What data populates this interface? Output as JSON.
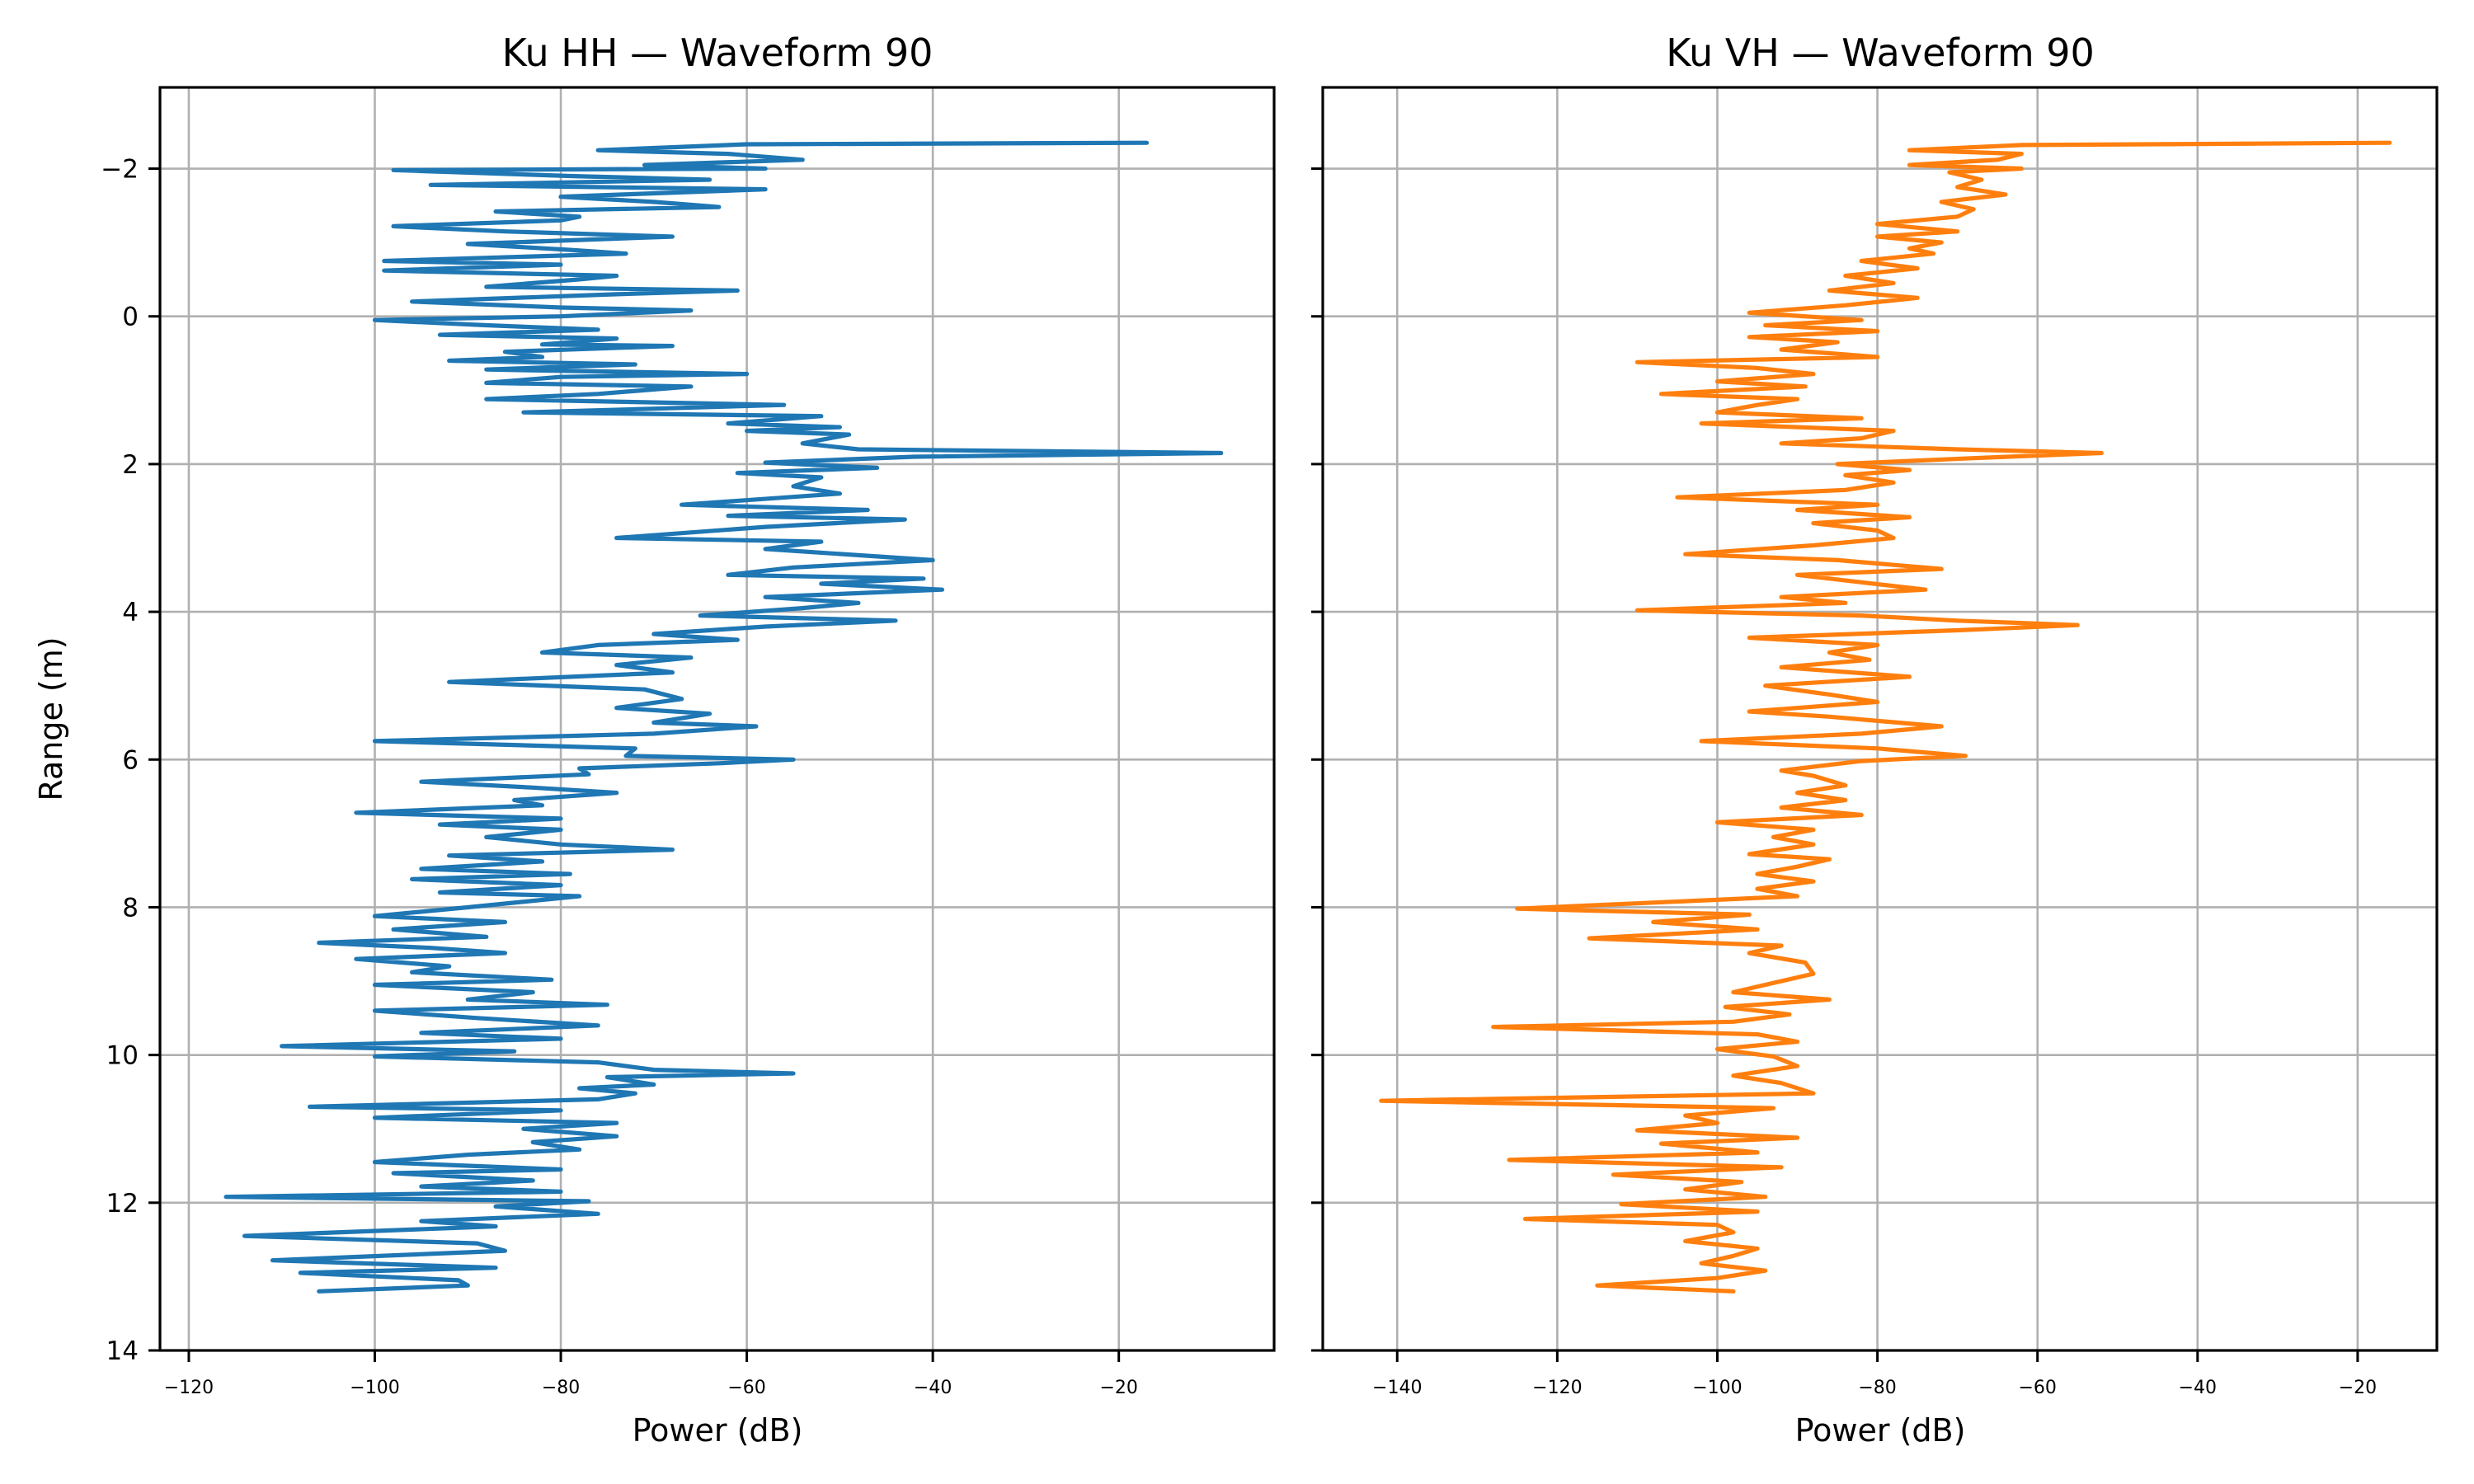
{
  "chart_data": [
    {
      "type": "line",
      "title": "Ku HH — Waveform 90",
      "xlabel": "Power (dB)",
      "ylabel": "Range (m)",
      "xlim": [
        -123.1,
        -3.3
      ],
      "ylim": [
        14,
        -3.1
      ],
      "y_inverted": true,
      "grid": true,
      "xticks": [
        -120,
        -100,
        -80,
        -60,
        -40,
        -20
      ],
      "xtick_labels": [
        "−120",
        "−100",
        "−80",
        "−60",
        "−40",
        "−20"
      ],
      "yticks": [
        -2,
        0,
        2,
        4,
        6,
        8,
        10,
        12,
        14
      ],
      "ytick_labels": [
        "−2",
        "0",
        "2",
        "4",
        "6",
        "8",
        "10",
        "12",
        "14"
      ],
      "show_ytick_labels": true,
      "series": [
        {
          "name": "Ku HH",
          "color": "#1f77b4",
          "range": [
            -2.35,
            -2.33,
            -2.25,
            -2.2,
            -2.12,
            -2.05,
            -2.0,
            -1.98,
            -1.9,
            -1.85,
            -1.78,
            -1.72,
            -1.62,
            -1.55,
            -1.48,
            -1.42,
            -1.35,
            -1.3,
            -1.22,
            -1.15,
            -1.08,
            -0.98,
            -0.9,
            -0.85,
            -0.75,
            -0.7,
            -0.62,
            -0.55,
            -0.5,
            -0.4,
            -0.35,
            -0.3,
            -0.2,
            -0.12,
            -0.08,
            0.0,
            0.05,
            0.12,
            0.18,
            0.25,
            0.3,
            0.38,
            0.4,
            0.48,
            0.55,
            0.6,
            0.65,
            0.72,
            0.78,
            0.82,
            0.9,
            0.95,
            1.05,
            1.12,
            1.2,
            1.25,
            1.3,
            1.35,
            1.45,
            1.5,
            1.55,
            1.6,
            1.72,
            1.8,
            1.85,
            1.9,
            1.98,
            2.05,
            2.12,
            2.18,
            2.3,
            2.4,
            2.55,
            2.62,
            2.7,
            2.75,
            2.85,
            3.0,
            3.05,
            3.15,
            3.3,
            3.4,
            3.5,
            3.55,
            3.62,
            3.7,
            3.8,
            3.88,
            3.95,
            4.05,
            4.12,
            4.2,
            4.3,
            4.38,
            4.45,
            4.55,
            4.62,
            4.72,
            4.82,
            4.95,
            5.05,
            5.18,
            5.3,
            5.38,
            5.5,
            5.55,
            5.65,
            5.75,
            5.85,
            5.95,
            6.0,
            6.05,
            6.12,
            6.2,
            6.3,
            6.38,
            6.45,
            6.55,
            6.62,
            6.72,
            6.8,
            6.88,
            6.95,
            7.05,
            7.15,
            7.22,
            7.3,
            7.38,
            7.48,
            7.55,
            7.62,
            7.7,
            7.8,
            7.85,
            8.0,
            8.12,
            8.2,
            8.3,
            8.4,
            8.48,
            8.55,
            8.62,
            8.7,
            8.8,
            8.88,
            8.98,
            9.05,
            9.15,
            9.25,
            9.32,
            9.4,
            9.5,
            9.6,
            9.7,
            9.78,
            9.88,
            9.95,
            10.02,
            10.1,
            10.2,
            10.25,
            10.3,
            10.4,
            10.45,
            10.52,
            10.6,
            10.7,
            10.75,
            10.85,
            10.92,
            11.0,
            11.1,
            11.18,
            11.28,
            11.35,
            11.45,
            11.55,
            11.6,
            11.7,
            11.78,
            11.85,
            11.92,
            11.98,
            12.05,
            12.15,
            12.25,
            12.32,
            12.45,
            12.55,
            12.65,
            12.78,
            12.88,
            12.95,
            13.05,
            13.12,
            13.2
          ],
          "power": [
            -17,
            -60,
            -76,
            -62,
            -54,
            -71,
            -58,
            -98,
            -79,
            -64,
            -94,
            -58,
            -80,
            -70,
            -63,
            -87,
            -78,
            -80,
            -98,
            -86,
            -68,
            -90,
            -79,
            -73,
            -99,
            -80,
            -99,
            -74,
            -78,
            -88,
            -61,
            -74,
            -96,
            -80,
            -66,
            -80,
            -100,
            -88,
            -76,
            -93,
            -74,
            -82,
            -68,
            -86,
            -82,
            -92,
            -72,
            -88,
            -60,
            -80,
            -88,
            -66,
            -76,
            -88,
            -56,
            -70,
            -84,
            -52,
            -62,
            -50,
            -60,
            -49,
            -54,
            -48,
            -9,
            -42,
            -58,
            -46,
            -61,
            -52,
            -55,
            -50,
            -67,
            -47,
            -62,
            -43,
            -58,
            -74,
            -52,
            -58,
            -40,
            -55,
            -62,
            -41,
            -52,
            -39,
            -58,
            -48,
            -54,
            -65,
            -44,
            -58,
            -70,
            -61,
            -76,
            -82,
            -66,
            -74,
            -68,
            -92,
            -71,
            -67,
            -74,
            -64,
            -70,
            -59,
            -70,
            -100,
            -72,
            -73,
            -55,
            -63,
            -78,
            -77,
            -95,
            -83,
            -74,
            -85,
            -82,
            -102,
            -80,
            -93,
            -80,
            -88,
            -80,
            -68,
            -92,
            -82,
            -95,
            -79,
            -96,
            -80,
            -93,
            -78,
            -90,
            -100,
            -86,
            -98,
            -88,
            -106,
            -94,
            -86,
            -102,
            -92,
            -96,
            -81,
            -100,
            -83,
            -90,
            -75,
            -100,
            -89,
            -76,
            -95,
            -80,
            -110,
            -85,
            -100,
            -76,
            -70,
            -55,
            -75,
            -70,
            -78,
            -72,
            -76,
            -107,
            -80,
            -100,
            -74,
            -84,
            -74,
            -83,
            -78,
            -90,
            -100,
            -80,
            -98,
            -83,
            -95,
            -80,
            -116,
            -77,
            -87,
            -76,
            -95,
            -87,
            -114,
            -89,
            -86,
            -111,
            -87,
            -108,
            -91,
            -90,
            -106
          ]
        }
      ]
    },
    {
      "type": "line",
      "title": "Ku VH — Waveform 90",
      "xlabel": "Power (dB)",
      "ylabel": "",
      "xlim": [
        -149.3,
        -10.1
      ],
      "ylim": [
        14,
        -3.1
      ],
      "y_inverted": true,
      "grid": true,
      "xticks": [
        -140,
        -120,
        -100,
        -80,
        -60,
        -40,
        -20
      ],
      "xtick_labels": [
        "−140",
        "−120",
        "−100",
        "−80",
        "−60",
        "−40",
        "−20"
      ],
      "yticks": [
        -2,
        0,
        2,
        4,
        6,
        8,
        10,
        12,
        14
      ],
      "ytick_labels": [],
      "show_ytick_labels": false,
      "series": [
        {
          "name": "Ku VH",
          "color": "#ff7f0e",
          "range": [
            -2.35,
            -2.32,
            -2.25,
            -2.2,
            -2.12,
            -2.05,
            -2.0,
            -1.95,
            -1.85,
            -1.75,
            -1.65,
            -1.55,
            -1.45,
            -1.35,
            -1.25,
            -1.15,
            -1.08,
            -1.0,
            -0.92,
            -0.85,
            -0.75,
            -0.65,
            -0.55,
            -0.45,
            -0.35,
            -0.25,
            -0.15,
            -0.05,
            0.05,
            0.12,
            0.2,
            0.28,
            0.35,
            0.45,
            0.55,
            0.62,
            0.7,
            0.78,
            0.88,
            0.95,
            1.05,
            1.12,
            1.2,
            1.3,
            1.38,
            1.45,
            1.55,
            1.65,
            1.72,
            1.8,
            1.85,
            1.92,
            2.0,
            2.08,
            2.15,
            2.25,
            2.35,
            2.45,
            2.55,
            2.62,
            2.72,
            2.8,
            2.9,
            3.0,
            3.1,
            3.22,
            3.3,
            3.42,
            3.5,
            3.6,
            3.7,
            3.8,
            3.88,
            3.98,
            4.05,
            4.12,
            4.18,
            4.25,
            4.35,
            4.45,
            4.55,
            4.65,
            4.75,
            4.88,
            5.0,
            5.12,
            5.22,
            5.35,
            5.42,
            5.55,
            5.65,
            5.75,
            5.85,
            5.95,
            6.02,
            6.15,
            6.22,
            6.35,
            6.45,
            6.55,
            6.65,
            6.75,
            6.85,
            6.95,
            7.05,
            7.15,
            7.28,
            7.35,
            7.45,
            7.55,
            7.65,
            7.75,
            7.85,
            8.02,
            8.1,
            8.2,
            8.3,
            8.42,
            8.52,
            8.62,
            8.75,
            8.9,
            9.05,
            9.15,
            9.25,
            9.35,
            9.45,
            9.55,
            9.62,
            9.72,
            9.82,
            9.92,
            10.02,
            10.15,
            10.28,
            10.38,
            10.52,
            10.62,
            10.72,
            10.82,
            10.92,
            11.02,
            11.12,
            11.2,
            11.32,
            11.42,
            11.52,
            11.62,
            11.72,
            11.82,
            11.92,
            12.02,
            12.12,
            12.22,
            12.3,
            12.4,
            12.52,
            12.62,
            12.72,
            12.82,
            12.92,
            13.02,
            13.12,
            13.2
          ],
          "power": [
            -16,
            -62,
            -76,
            -62,
            -65,
            -76,
            -62,
            -71,
            -67,
            -70,
            -64,
            -72,
            -68,
            -70,
            -80,
            -70,
            -80,
            -72,
            -76,
            -73,
            -82,
            -75,
            -84,
            -78,
            -86,
            -75,
            -84,
            -96,
            -82,
            -94,
            -80,
            -96,
            -85,
            -92,
            -80,
            -110,
            -95,
            -88,
            -100,
            -89,
            -107,
            -90,
            -95,
            -100,
            -82,
            -102,
            -78,
            -82,
            -92,
            -70,
            -52,
            -68,
            -85,
            -76,
            -84,
            -78,
            -84,
            -105,
            -80,
            -90,
            -76,
            -88,
            -80,
            -78,
            -88,
            -104,
            -85,
            -72,
            -90,
            -82,
            -74,
            -92,
            -84,
            -110,
            -82,
            -70,
            -55,
            -70,
            -96,
            -80,
            -86,
            -81,
            -92,
            -76,
            -94,
            -86,
            -80,
            -96,
            -86,
            -72,
            -82,
            -102,
            -80,
            -69,
            -82,
            -92,
            -88,
            -84,
            -90,
            -84,
            -92,
            -82,
            -100,
            -88,
            -93,
            -88,
            -96,
            -86,
            -90,
            -95,
            -88,
            -95,
            -90,
            -125,
            -96,
            -108,
            -95,
            -116,
            -92,
            -96,
            -89,
            -88,
            -94,
            -98,
            -86,
            -99,
            -91,
            -98,
            -128,
            -95,
            -90,
            -100,
            -93,
            -90,
            -98,
            -92,
            -88,
            -142,
            -93,
            -104,
            -100,
            -110,
            -90,
            -107,
            -95,
            -126,
            -92,
            -113,
            -97,
            -104,
            -94,
            -112,
            -95,
            -124,
            -100,
            -98,
            -104,
            -95,
            -98,
            -102,
            -94,
            -100,
            -115,
            -98
          ]
        }
      ]
    }
  ]
}
